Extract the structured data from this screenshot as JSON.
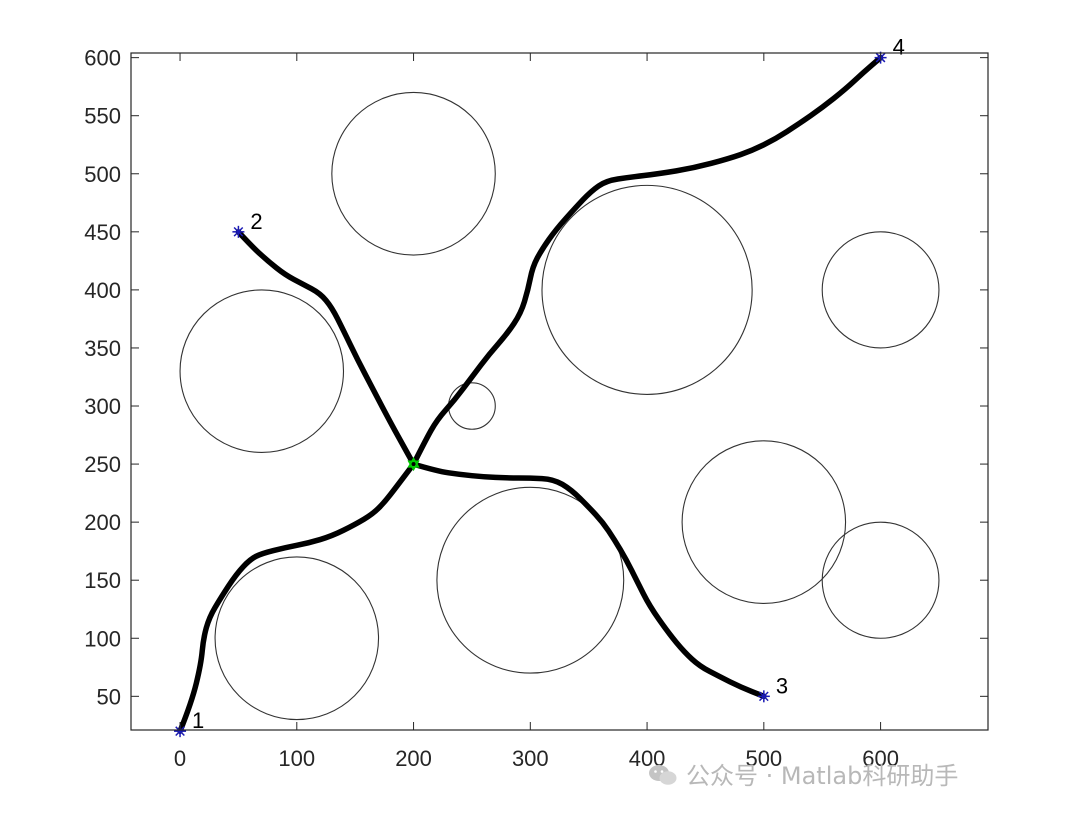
{
  "chart_data": {
    "type": "scatter",
    "title": "",
    "xlabel": "",
    "ylabel": "",
    "xlim": [
      -42,
      692
    ],
    "ylim": [
      21,
      604
    ],
    "xticks": [
      0,
      100,
      200,
      300,
      400,
      500,
      600
    ],
    "yticks": [
      50,
      100,
      150,
      200,
      250,
      300,
      350,
      400,
      450,
      500,
      550,
      600
    ],
    "grid": false,
    "box": true,
    "colors": {
      "axis": "#262626",
      "path": "#000000",
      "circle": "#333333",
      "endpoint": "#1a1ab4",
      "junction": "#00cc00"
    },
    "obstacles": [
      {
        "cx": 200,
        "cy": 500,
        "r": 70
      },
      {
        "cx": 400,
        "cy": 400,
        "r": 90
      },
      {
        "cx": 600,
        "cy": 400,
        "r": 50
      },
      {
        "cx": 70,
        "cy": 330,
        "r": 70
      },
      {
        "cx": 250,
        "cy": 300,
        "r": 20
      },
      {
        "cx": 500,
        "cy": 200,
        "r": 70
      },
      {
        "cx": 600,
        "cy": 150,
        "r": 50
      },
      {
        "cx": 300,
        "cy": 150,
        "r": 80
      },
      {
        "cx": 100,
        "cy": 100,
        "r": 70
      }
    ],
    "endpoints": [
      {
        "label": "1",
        "x": 0,
        "y": 20
      },
      {
        "label": "2",
        "x": 50,
        "y": 450
      },
      {
        "label": "3",
        "x": 500,
        "y": 50
      },
      {
        "label": "4",
        "x": 600,
        "y": 600
      }
    ],
    "junction": {
      "x": 200,
      "y": 250
    },
    "paths": [
      {
        "from": "1",
        "points": [
          [
            0,
            20
          ],
          [
            10,
            45
          ],
          [
            18,
            78
          ],
          [
            20,
            100
          ],
          [
            25,
            118
          ],
          [
            35,
            135
          ],
          [
            48,
            155
          ],
          [
            60,
            168
          ],
          [
            70,
            173
          ],
          [
            90,
            178
          ],
          [
            110,
            182
          ],
          [
            130,
            188
          ],
          [
            150,
            198
          ],
          [
            165,
            207
          ],
          [
            175,
            217
          ],
          [
            185,
            230
          ],
          [
            200,
            250
          ]
        ]
      },
      {
        "from": "2",
        "points": [
          [
            50,
            450
          ],
          [
            62,
            437
          ],
          [
            75,
            425
          ],
          [
            90,
            413
          ],
          [
            105,
            405
          ],
          [
            120,
            397
          ],
          [
            130,
            385
          ],
          [
            140,
            365
          ],
          [
            152,
            340
          ],
          [
            165,
            315
          ],
          [
            178,
            290
          ],
          [
            190,
            268
          ],
          [
            200,
            250
          ]
        ]
      },
      {
        "from": "3",
        "points": [
          [
            200,
            250
          ],
          [
            220,
            244
          ],
          [
            240,
            241
          ],
          [
            260,
            239
          ],
          [
            280,
            238
          ],
          [
            300,
            238
          ],
          [
            320,
            237
          ],
          [
            335,
            228
          ],
          [
            350,
            213
          ],
          [
            362,
            200
          ],
          [
            372,
            185
          ],
          [
            382,
            168
          ],
          [
            392,
            148
          ],
          [
            402,
            128
          ],
          [
            418,
            105
          ],
          [
            432,
            88
          ],
          [
            445,
            76
          ],
          [
            462,
            67
          ],
          [
            480,
            58
          ],
          [
            500,
            50
          ]
        ]
      },
      {
        "from": "4",
        "points": [
          [
            200,
            250
          ],
          [
            210,
            270
          ],
          [
            220,
            288
          ],
          [
            235,
            305
          ],
          [
            250,
            325
          ],
          [
            265,
            345
          ],
          [
            280,
            362
          ],
          [
            292,
            380
          ],
          [
            298,
            400
          ],
          [
            302,
            420
          ],
          [
            310,
            435
          ],
          [
            322,
            452
          ],
          [
            338,
            470
          ],
          [
            352,
            485
          ],
          [
            365,
            494
          ],
          [
            385,
            497
          ],
          [
            410,
            500
          ],
          [
            440,
            505
          ],
          [
            470,
            513
          ],
          [
            490,
            520
          ],
          [
            510,
            530
          ],
          [
            530,
            543
          ],
          [
            550,
            557
          ],
          [
            570,
            573
          ],
          [
            585,
            587
          ],
          [
            600,
            600
          ]
        ]
      }
    ]
  },
  "watermark": {
    "text": "公众号 · Matlab科研助手",
    "icon": "wechat-icon"
  }
}
